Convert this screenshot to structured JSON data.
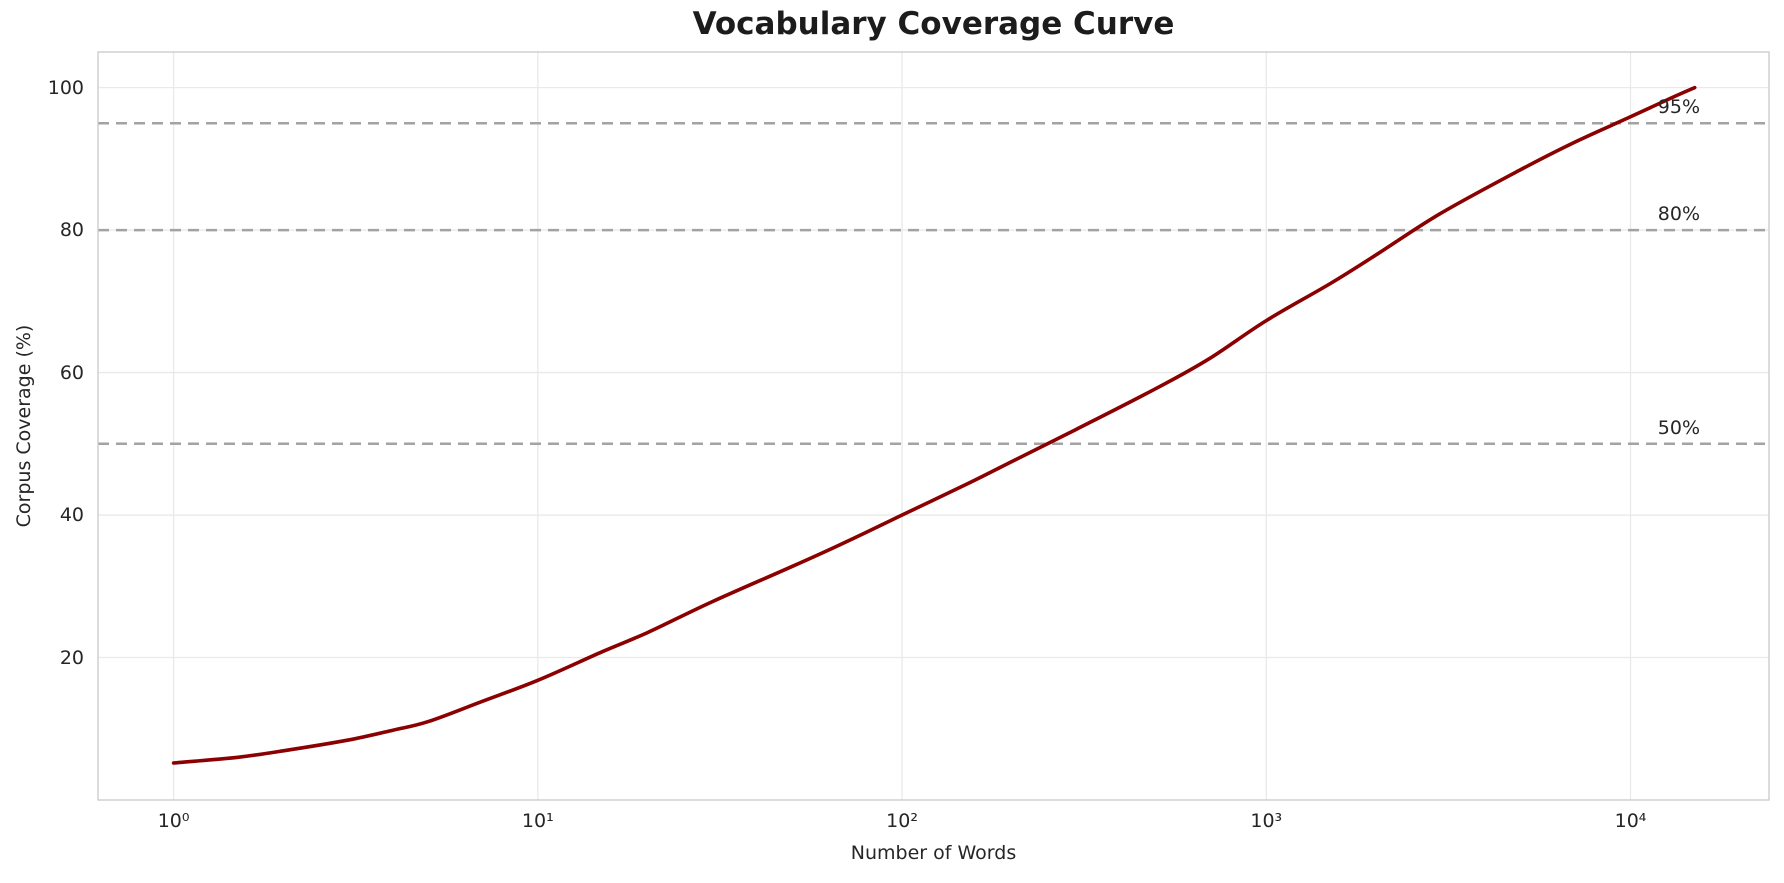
{
  "chart_data": {
    "type": "line",
    "title": "Vocabulary Coverage Curve",
    "xlabel": "Number of Words",
    "ylabel": "Corpus Coverage (%)",
    "x_scale": "log",
    "grid": true,
    "legend": "none",
    "xlim": [
      0.62,
      24000
    ],
    "ylim": [
      0,
      105
    ],
    "x_ticks": [
      {
        "value": 1,
        "label": "10⁰"
      },
      {
        "value": 10,
        "label": "10¹"
      },
      {
        "value": 100,
        "label": "10²"
      },
      {
        "value": 1000,
        "label": "10³"
      },
      {
        "value": 10000,
        "label": "10⁴"
      }
    ],
    "y_ticks": [
      {
        "value": 20,
        "label": "20"
      },
      {
        "value": 40,
        "label": "40"
      },
      {
        "value": 60,
        "label": "60"
      },
      {
        "value": 80,
        "label": "80"
      },
      {
        "value": 100,
        "label": "100"
      }
    ],
    "series": [
      {
        "name": "coverage-curve",
        "color": "#8B0000",
        "linewidth": 3.6,
        "points": [
          [
            1,
            5.2
          ],
          [
            1.5,
            6.0
          ],
          [
            2,
            6.9
          ],
          [
            3,
            8.4
          ],
          [
            4,
            9.8
          ],
          [
            5,
            11.0
          ],
          [
            7,
            13.8
          ],
          [
            10,
            16.8
          ],
          [
            15,
            20.8
          ],
          [
            20,
            23.5
          ],
          [
            30,
            27.8
          ],
          [
            50,
            32.8
          ],
          [
            70,
            36.2
          ],
          [
            100,
            40.0
          ],
          [
            150,
            44.3
          ],
          [
            200,
            47.5
          ],
          [
            300,
            52.0
          ],
          [
            500,
            57.8
          ],
          [
            700,
            62.0
          ],
          [
            1000,
            67.3
          ],
          [
            1500,
            72.5
          ],
          [
            2000,
            76.5
          ],
          [
            3000,
            82.3
          ],
          [
            5000,
            88.5
          ],
          [
            7000,
            92.3
          ],
          [
            10000,
            95.9
          ],
          [
            13000,
            98.6
          ],
          [
            15000,
            100.0
          ]
        ]
      }
    ],
    "reference_lines": [
      {
        "value": 50,
        "label": "50%"
      },
      {
        "value": 80,
        "label": "80%"
      },
      {
        "value": 95,
        "label": "95%"
      }
    ],
    "colors": {
      "curve": "#8B0000",
      "reference": "#a3a3a3",
      "grid": "#e9e9e9",
      "spine": "#c9c9c9",
      "text": "#262626",
      "title": "#1c1c1c",
      "background": "#ffffff"
    }
  }
}
